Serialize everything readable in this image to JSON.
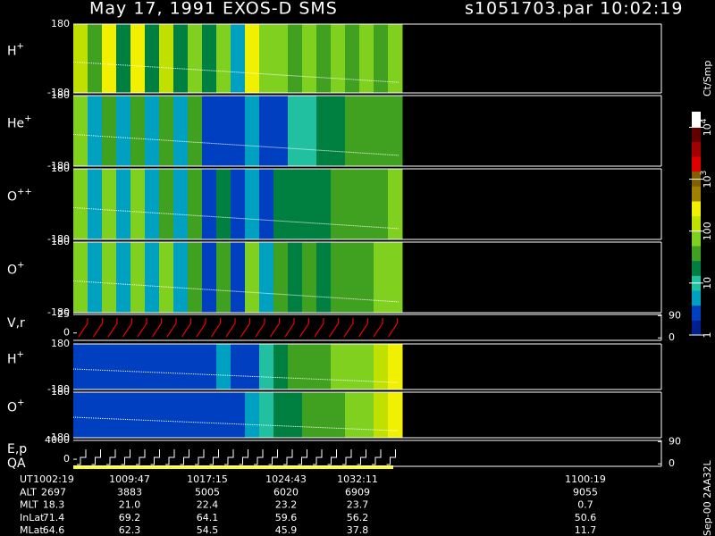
{
  "chart_data": {
    "type": "spectrogram",
    "title": "May 17, 1991   EXOS-D SMS",
    "file_label": "s1051703.par  10:02:19",
    "side_note": "Sep-00 2AA32L",
    "colorbar": {
      "label": "Ct/Smp",
      "clim": [
        0,
        4.3
      ],
      "colors": [
        "#00208f",
        "#0040c0",
        "#00a0c0",
        "#20c0a0",
        "#008040",
        "#40a020",
        "#80d020",
        "#c0e000",
        "#f0f000",
        "#a08000",
        "#806000",
        "#e00000",
        "#a00000",
        "#600000",
        "#ffffff"
      ],
      "ticks": [
        {
          "value": 4,
          "label": "10",
          "sup": "4"
        },
        {
          "value": 3,
          "label": "10",
          "sup": "3"
        },
        {
          "value": 2,
          "label": "100"
        },
        {
          "value": 1,
          "label": "10"
        },
        {
          "value": 0,
          "label": "1"
        }
      ]
    },
    "panels": [
      {
        "name": {
          "base": "H",
          "sup": "+"
        },
        "kind": "spectrogram",
        "ylim": [
          -180,
          180
        ],
        "yticks": [
          180,
          -180
        ],
        "levels": [
          2.2,
          1.5,
          2.3,
          1.4,
          2.3,
          1.4,
          2.2,
          1.3,
          2.0,
          1.2,
          1.8,
          0.6,
          2.3,
          1.8,
          2.0,
          1.5,
          1.9,
          1.7,
          1.9,
          1.6,
          2.0,
          1.7,
          1.8
        ]
      },
      {
        "name": {
          "base": "He",
          "sup": "+"
        },
        "kind": "spectrogram",
        "ylim": [
          -180,
          180
        ],
        "yticks": [
          180,
          -180
        ],
        "levels": [
          1.8,
          0.6,
          1.7,
          0.6,
          1.7,
          0.6,
          1.6,
          0.6,
          1.5,
          0.5,
          0.5,
          0.5,
          0.6,
          0.5,
          0.5,
          0.9,
          1.1,
          1.2,
          1.3,
          1.5,
          1.5,
          1.6,
          1.7
        ]
      },
      {
        "name": {
          "base": "O",
          "sup": "++"
        },
        "kind": "spectrogram",
        "ylim": [
          -180,
          180
        ],
        "yticks": [
          180,
          -180
        ],
        "levels": [
          1.9,
          0.6,
          1.8,
          0.6,
          1.8,
          0.6,
          1.7,
          0.6,
          1.6,
          0.5,
          1.2,
          0.5,
          0.6,
          0.5,
          1.4,
          1.2,
          1.3,
          1.4,
          1.5,
          1.6,
          1.6,
          1.7,
          1.8
        ]
      },
      {
        "name": {
          "base": "O",
          "sup": "+"
        },
        "kind": "spectrogram",
        "ylim": [
          -180,
          180
        ],
        "yticks": [
          180,
          -180
        ],
        "levels": [
          2.0,
          0.7,
          1.9,
          0.7,
          1.9,
          0.7,
          1.8,
          0.7,
          1.7,
          0.5,
          1.5,
          0.5,
          1.8,
          0.6,
          1.7,
          1.2,
          1.5,
          1.4,
          1.6,
          1.6,
          1.7,
          1.8,
          1.8
        ]
      },
      {
        "name": {
          "base": "V,r"
        },
        "kind": "trace",
        "ylim": [
          -10,
          25
        ],
        "yticks": [
          25,
          0
        ],
        "y2lim": [
          -10,
          95
        ],
        "y2ticks": [
          90,
          0
        ]
      },
      {
        "name": {
          "base": "H",
          "sup": "+"
        },
        "kind": "spectrogram",
        "ylim": [
          -180,
          180
        ],
        "yticks": [
          180,
          -180
        ],
        "levels": [
          0.3,
          0.3,
          0.3,
          0.3,
          0.3,
          0.3,
          0.4,
          0.4,
          0.4,
          0.5,
          0.7,
          0.4,
          0.5,
          1.0,
          1.3,
          1.5,
          1.6,
          1.7,
          1.8,
          1.9,
          2.0,
          2.2,
          2.4
        ]
      },
      {
        "name": {
          "base": "O",
          "sup": "+"
        },
        "kind": "spectrogram",
        "ylim": [
          -180,
          180
        ],
        "yticks": [
          180,
          -180
        ],
        "levels": [
          0.3,
          0.3,
          0.3,
          0.3,
          0.3,
          0.3,
          0.3,
          0.3,
          0.4,
          0.4,
          0.5,
          0.5,
          0.6,
          1.1,
          1.3,
          1.4,
          1.5,
          1.6,
          1.7,
          1.8,
          1.9,
          2.2,
          2.3
        ]
      },
      {
        "name": {
          "base": "E,p"
        },
        "name2": "QA",
        "kind": "steps",
        "ylim": [
          -1500,
          4000
        ],
        "yticks": [
          4000,
          0
        ],
        "y2lim": [
          -10,
          95
        ],
        "y2ticks": [
          90,
          0
        ]
      }
    ],
    "table": {
      "rows": [
        [
          "UT",
          "1002:19",
          "1009:47",
          "1017:15",
          "1024:43",
          "1032:11",
          "1100:19"
        ],
        [
          "ALT",
          "2697",
          "3883",
          "5005",
          "6020",
          "6909",
          "9055"
        ],
        [
          "MLT",
          "18.3",
          "21.0",
          "22.4",
          "23.2",
          "23.7",
          "0.7"
        ],
        [
          "InLat",
          "71.4",
          "69.2",
          "64.1",
          "59.6",
          "56.2",
          "50.6"
        ],
        [
          "MLat",
          "64.6",
          "62.3",
          "54.5",
          "45.9",
          "37.8",
          "11.7"
        ]
      ]
    }
  }
}
